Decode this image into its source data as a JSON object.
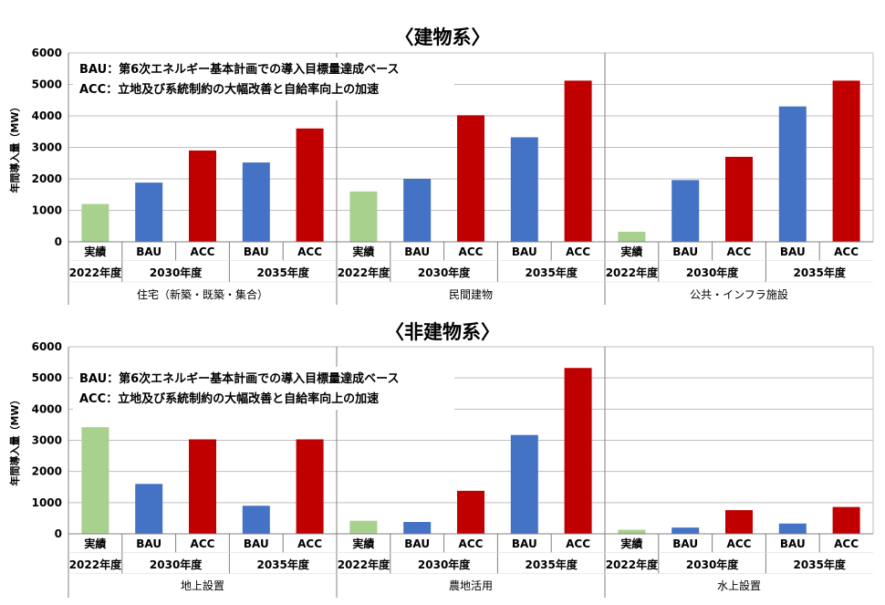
{
  "chart_data": [
    {
      "type": "bar",
      "title": "〈建物系〉",
      "ylabel": "年間導入量（MW）",
      "ylim": [
        0,
        6000
      ],
      "yticks": [
        0,
        1000,
        2000,
        3000,
        4000,
        5000,
        6000
      ],
      "grid": true,
      "legend_position": "top-left",
      "annotation": [
        "BAU：第6次エネルギー基本計画での導入目標量達成ベース",
        "ACC：立地及び系統制約の大幅改善と自給率向上の加速"
      ],
      "groups": [
        {
          "label": "住宅（新築・既築・集合）",
          "years": [
            {
              "label": "2022年度",
              "bars": [
                {
                  "label": "実績",
                  "value": 1200,
                  "kind": "actual"
                }
              ]
            },
            {
              "label": "2030年度",
              "bars": [
                {
                  "label": "BAU",
                  "value": 1880,
                  "kind": "bau"
                },
                {
                  "label": "ACC",
                  "value": 2900,
                  "kind": "acc"
                }
              ]
            },
            {
              "label": "2035年度",
              "bars": [
                {
                  "label": "BAU",
                  "value": 2520,
                  "kind": "bau"
                },
                {
                  "label": "ACC",
                  "value": 3600,
                  "kind": "acc"
                }
              ]
            }
          ]
        },
        {
          "label": "民間建物",
          "years": [
            {
              "label": "2022年度",
              "bars": [
                {
                  "label": "実績",
                  "value": 1600,
                  "kind": "actual"
                }
              ]
            },
            {
              "label": "2030年度",
              "bars": [
                {
                  "label": "BAU",
                  "value": 2000,
                  "kind": "bau"
                },
                {
                  "label": "ACC",
                  "value": 4020,
                  "kind": "acc"
                }
              ]
            },
            {
              "label": "2035年度",
              "bars": [
                {
                  "label": "BAU",
                  "value": 3320,
                  "kind": "bau"
                },
                {
                  "label": "ACC",
                  "value": 5120,
                  "kind": "acc"
                }
              ]
            }
          ]
        },
        {
          "label": "公共・インフラ施設",
          "years": [
            {
              "label": "2022年度",
              "bars": [
                {
                  "label": "実績",
                  "value": 320,
                  "kind": "actual"
                }
              ]
            },
            {
              "label": "2030年度",
              "bars": [
                {
                  "label": "BAU",
                  "value": 1960,
                  "kind": "bau"
                },
                {
                  "label": "ACC",
                  "value": 2700,
                  "kind": "acc"
                }
              ]
            },
            {
              "label": "2035年度",
              "bars": [
                {
                  "label": "BAU",
                  "value": 4300,
                  "kind": "bau"
                },
                {
                  "label": "ACC",
                  "value": 5120,
                  "kind": "acc"
                }
              ]
            }
          ]
        }
      ]
    },
    {
      "type": "bar",
      "title": "〈非建物系〉",
      "ylabel": "年間導入量（MW）",
      "ylim": [
        0,
        6000
      ],
      "yticks": [
        0,
        1000,
        2000,
        3000,
        4000,
        5000,
        6000
      ],
      "grid": true,
      "legend_position": "top-left",
      "annotation": [
        "BAU：第6次エネルギー基本計画での導入目標量達成ベース",
        "ACC：立地及び系統制約の大幅改善と自給率向上の加速"
      ],
      "groups": [
        {
          "label": "地上設置",
          "years": [
            {
              "label": "2022年度",
              "bars": [
                {
                  "label": "実績",
                  "value": 3420,
                  "kind": "actual"
                }
              ]
            },
            {
              "label": "2030年度",
              "bars": [
                {
                  "label": "BAU",
                  "value": 1600,
                  "kind": "bau"
                },
                {
                  "label": "ACC",
                  "value": 3030,
                  "kind": "acc"
                }
              ]
            },
            {
              "label": "2035年度",
              "bars": [
                {
                  "label": "BAU",
                  "value": 900,
                  "kind": "bau"
                },
                {
                  "label": "ACC",
                  "value": 3030,
                  "kind": "acc"
                }
              ]
            }
          ]
        },
        {
          "label": "農地活用",
          "years": [
            {
              "label": "2022年度",
              "bars": [
                {
                  "label": "実績",
                  "value": 420,
                  "kind": "actual"
                }
              ]
            },
            {
              "label": "2030年度",
              "bars": [
                {
                  "label": "BAU",
                  "value": 380,
                  "kind": "bau"
                },
                {
                  "label": "ACC",
                  "value": 1380,
                  "kind": "acc"
                }
              ]
            },
            {
              "label": "2035年度",
              "bars": [
                {
                  "label": "BAU",
                  "value": 3170,
                  "kind": "bau"
                },
                {
                  "label": "ACC",
                  "value": 5320,
                  "kind": "acc"
                }
              ]
            }
          ]
        },
        {
          "label": "水上設置",
          "years": [
            {
              "label": "2022年度",
              "bars": [
                {
                  "label": "実績",
                  "value": 130,
                  "kind": "actual"
                }
              ]
            },
            {
              "label": "2030年度",
              "bars": [
                {
                  "label": "BAU",
                  "value": 200,
                  "kind": "bau"
                },
                {
                  "label": "ACC",
                  "value": 760,
                  "kind": "acc"
                }
              ]
            },
            {
              "label": "2035年度",
              "bars": [
                {
                  "label": "BAU",
                  "value": 330,
                  "kind": "bau"
                },
                {
                  "label": "ACC",
                  "value": 860,
                  "kind": "acc"
                }
              ]
            }
          ]
        }
      ]
    }
  ],
  "colors": {
    "actual": "#a9d18e",
    "bau": "#4472c4",
    "acc": "#c00000",
    "grid": "#bfbfbf",
    "axis": "#808080"
  }
}
